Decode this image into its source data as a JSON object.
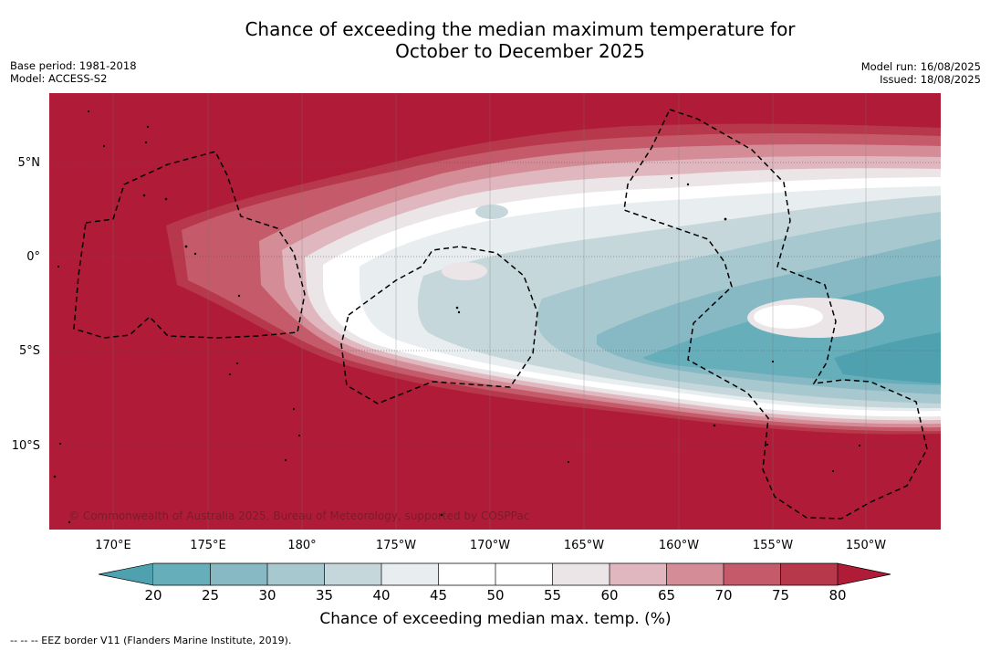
{
  "title_line1": "Chance of exceeding the median maximum temperature for",
  "title_line2": "October to December 2025",
  "meta_left": {
    "base_period": "Base period: 1981-2018",
    "model": "Model: ACCESS-S2"
  },
  "meta_right": {
    "model_run": "Model run: 16/08/2025",
    "issued": "Issued: 18/08/2025"
  },
  "copyright": "© Commonwealth of Australia 2025, Bureau of Meteorology, supported by COSPPac",
  "longitude_labels": [
    "170°E",
    "175°E",
    "180°",
    "175°W",
    "170°W",
    "165°W",
    "160°W",
    "155°W",
    "150°W"
  ],
  "latitude_labels": [
    "5°N",
    "0°",
    "5°S",
    "10°S"
  ],
  "colorbar": {
    "label": "Chance of exceeding median max. temp. (%)",
    "ticks": [
      "20",
      "25",
      "30",
      "35",
      "40",
      "45",
      "50",
      "55",
      "60",
      "65",
      "70",
      "75",
      "80"
    ],
    "colors": {
      "below_20": "#4fa1b0",
      "20_25": "#67aebb",
      "25_30": "#86b9c4",
      "30_35": "#a7c8cf",
      "35_40": "#c6d7dc",
      "40_45": "#e8edf0",
      "45_50": "#ffffff",
      "50_55": "#ffffff",
      "55_60": "#ebe5e7",
      "60_65": "#e0b7be",
      "65_70": "#d48d96",
      "70_75": "#c45a6a",
      "75_80": "#b8384b",
      "above_80": "#b01c38"
    }
  },
  "footer": "-- -- -- EEZ border V11 (Flanders Marine Institute, 2019)."
}
